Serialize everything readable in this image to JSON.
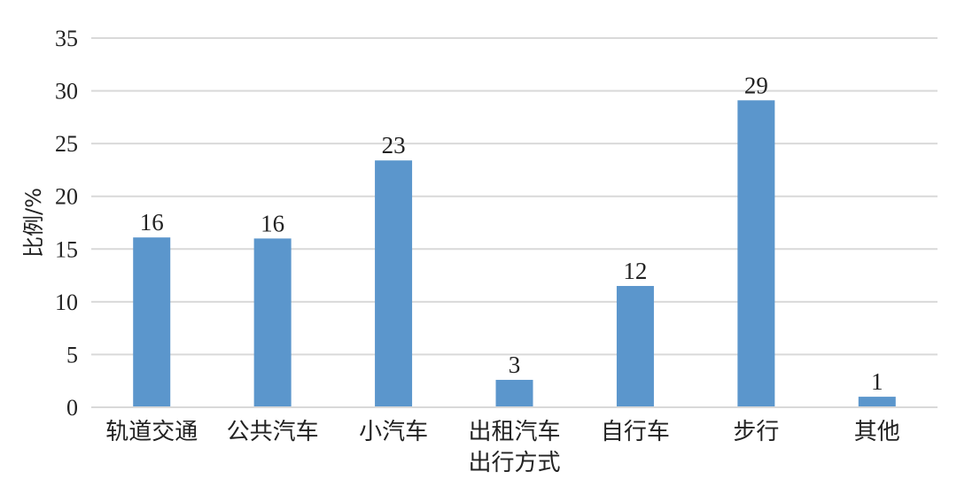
{
  "chart_data": {
    "type": "bar",
    "title": "",
    "xlabel": "出行方式",
    "ylabel": "比例/%",
    "categories": [
      "轨道交通",
      "公共汽车",
      "小汽车",
      "出租汽车",
      "自行车",
      "步行",
      "其他"
    ],
    "values": [
      16.1,
      16.0,
      23.4,
      2.6,
      11.5,
      29.1,
      1.0
    ],
    "data_labels": [
      "16",
      "16",
      "23",
      "3",
      "12",
      "29",
      "1"
    ],
    "ylim": [
      0,
      35
    ],
    "yticks": [
      0,
      5,
      10,
      15,
      20,
      25,
      30,
      35
    ],
    "grid": true,
    "bar_color": "#5B96CC",
    "grid_color": "#D9D9D9"
  }
}
